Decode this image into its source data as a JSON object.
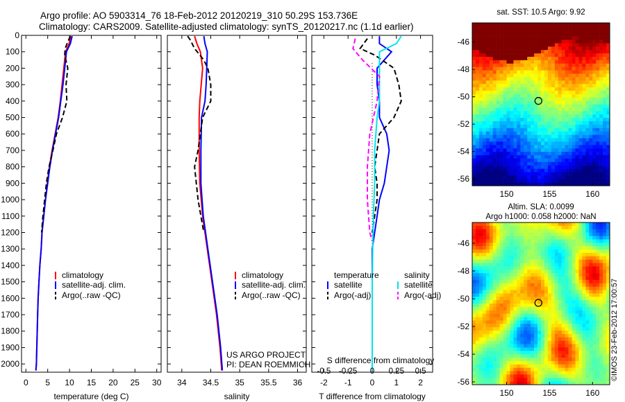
{
  "header": {
    "line1": "Argo profile: AO 5903314_76 18-Feb-2012 20120219_310 50.29S 153.736E",
    "line2": "Climatology: CARS2009. Satellite-adjusted climatology: synTS_20120217.nc (1.1d earlier)"
  },
  "colors": {
    "climatology": "#ff0000",
    "satellite": "#0000ff",
    "argo": "#000000",
    "s_satellite": "#00e5ee",
    "s_argo": "#ff00ff"
  },
  "chart_data": [
    {
      "type": "line",
      "id": "temperature",
      "xlabel": "temperature (deg C)",
      "ylabel": "",
      "xlim": [
        -1,
        31
      ],
      "ylim": [
        2050,
        0
      ],
      "xticks": [
        0,
        5,
        10,
        15,
        20,
        25,
        30
      ],
      "yticks": [
        0,
        100,
        200,
        300,
        400,
        500,
        600,
        700,
        800,
        900,
        1000,
        1100,
        1200,
        1300,
        1400,
        1500,
        1600,
        1700,
        1800,
        1900,
        2000
      ],
      "legend": [
        "climatology",
        "satellite-adj. clim.",
        "Argo(..raw -QC)"
      ],
      "series": [
        {
          "name": "climatology",
          "points": [
            [
              10.3,
              5
            ],
            [
              9.9,
              50
            ],
            [
              9.1,
              100
            ],
            [
              8.7,
              200
            ],
            [
              8.3,
              300
            ],
            [
              7.9,
              400
            ],
            [
              7.4,
              500
            ],
            [
              6.7,
              600
            ],
            [
              6.0,
              700
            ],
            [
              5.4,
              800
            ],
            [
              4.9,
              900
            ],
            [
              4.5,
              1000
            ],
            [
              4.1,
              1100
            ],
            [
              3.7,
              1200
            ],
            [
              3.5,
              1300
            ],
            [
              3.2,
              1400
            ],
            [
              3.0,
              1500
            ],
            [
              2.8,
              1600
            ],
            [
              2.7,
              1700
            ],
            [
              2.6,
              1800
            ],
            [
              2.5,
              1900
            ],
            [
              2.4,
              2000
            ],
            [
              2.3,
              2040
            ]
          ]
        },
        {
          "name": "satellite-adj. clim.",
          "points": [
            [
              10.6,
              5
            ],
            [
              10.2,
              50
            ],
            [
              9.3,
              100
            ],
            [
              8.9,
              200
            ],
            [
              8.5,
              300
            ],
            [
              8.0,
              400
            ],
            [
              7.5,
              500
            ],
            [
              6.8,
              600
            ],
            [
              6.1,
              700
            ],
            [
              5.5,
              800
            ],
            [
              5.0,
              900
            ],
            [
              4.5,
              1000
            ],
            [
              4.1,
              1100
            ],
            [
              3.7,
              1200
            ],
            [
              3.5,
              1300
            ],
            [
              3.2,
              1400
            ],
            [
              3.0,
              1500
            ],
            [
              2.8,
              1600
            ],
            [
              2.7,
              1700
            ],
            [
              2.6,
              1800
            ],
            [
              2.5,
              1900
            ],
            [
              2.4,
              2000
            ],
            [
              2.3,
              2040
            ]
          ]
        },
        {
          "name": "Argo(..raw -QC)",
          "points": [
            [
              10.2,
              5
            ],
            [
              9.6,
              40
            ],
            [
              9.0,
              80
            ],
            [
              8.9,
              120
            ],
            [
              9.6,
              200
            ],
            [
              9.2,
              300
            ],
            [
              9.4,
              400
            ],
            [
              8.4,
              500
            ],
            [
              7.0,
              600
            ],
            [
              6.2,
              700
            ],
            [
              5.3,
              800
            ],
            [
              4.7,
              900
            ],
            [
              4.3,
              1000
            ],
            [
              3.9,
              1100
            ],
            [
              3.6,
              1200
            ]
          ]
        }
      ]
    },
    {
      "type": "line",
      "id": "salinity",
      "xlabel": "salinity",
      "xlim": [
        33.75,
        36.15
      ],
      "ylim": [
        2050,
        0
      ],
      "xticks": [
        34,
        34.5,
        35,
        35.5,
        36
      ],
      "legend": [
        "climatology",
        "satellite-adj. clim.",
        "Argo(..raw -QC)"
      ],
      "series": [
        {
          "name": "climatology",
          "points": [
            [
              34.22,
              5
            ],
            [
              34.26,
              50
            ],
            [
              34.32,
              100
            ],
            [
              34.36,
              200
            ],
            [
              34.31,
              400
            ],
            [
              34.3,
              500
            ],
            [
              34.3,
              700
            ],
            [
              34.31,
              900
            ],
            [
              34.36,
              1100
            ],
            [
              34.44,
              1300
            ],
            [
              34.52,
              1500
            ],
            [
              34.6,
              1700
            ],
            [
              34.66,
              1900
            ],
            [
              34.69,
              2040
            ]
          ]
        },
        {
          "name": "satellite-adj. clim.",
          "points": [
            [
              34.38,
              5
            ],
            [
              34.4,
              50
            ],
            [
              34.44,
              100
            ],
            [
              34.43,
              200
            ],
            [
              34.42,
              300
            ],
            [
              34.4,
              400
            ],
            [
              34.34,
              500
            ],
            [
              34.33,
              700
            ],
            [
              34.33,
              900
            ],
            [
              34.37,
              1100
            ],
            [
              34.45,
              1300
            ],
            [
              34.53,
              1500
            ],
            [
              34.61,
              1700
            ],
            [
              34.67,
              1900
            ],
            [
              34.7,
              2040
            ]
          ]
        },
        {
          "name": "Argo(..raw -QC)",
          "points": [
            [
              34.1,
              5
            ],
            [
              34.15,
              30
            ],
            [
              34.22,
              80
            ],
            [
              34.38,
              150
            ],
            [
              34.45,
              200
            ],
            [
              34.5,
              300
            ],
            [
              34.5,
              400
            ],
            [
              34.36,
              500
            ],
            [
              34.28,
              700
            ],
            [
              34.22,
              800
            ],
            [
              34.25,
              900
            ],
            [
              34.28,
              1000
            ],
            [
              34.33,
              1100
            ],
            [
              34.38,
              1200
            ]
          ]
        }
      ]
    },
    {
      "type": "line",
      "id": "difference",
      "xlabel": "T difference from climatology",
      "xlabel_top": "S difference from climatology",
      "xlim": [
        -2.5,
        2.5
      ],
      "ylim": [
        2050,
        0
      ],
      "xticks": [
        -2,
        -1,
        0,
        1,
        2
      ],
      "xticks_top_labels": [
        "-0.5",
        "-0.25",
        "0",
        "0.25",
        "0.5"
      ],
      "legend_left_title": "temperature",
      "legend_right_title": "salinity",
      "legend": [
        "satellite",
        "Argo(-adj)",
        "satellite",
        "Argo(-adj)"
      ],
      "annotation": [
        "US ARGO PROJECT",
        "PI: DEAN ROEMMICH"
      ],
      "series": [
        {
          "name": "satellite",
          "group": "temperature",
          "points": [
            [
              0.3,
              5
            ],
            [
              0.3,
              50
            ],
            [
              0.8,
              100
            ],
            [
              0.2,
              200
            ],
            [
              0.2,
              300
            ],
            [
              0.3,
              400
            ],
            [
              0.3,
              500
            ],
            [
              0.6,
              600
            ],
            [
              0.7,
              700
            ],
            [
              0.6,
              800
            ],
            [
              0.5,
              900
            ],
            [
              0.3,
              1000
            ],
            [
              0.2,
              1100
            ],
            [
              0.1,
              1200
            ],
            [
              0,
              1300
            ],
            [
              0,
              1400
            ],
            [
              0,
              1600
            ],
            [
              0,
              1800
            ],
            [
              0,
              2040
            ]
          ]
        },
        {
          "name": "Argo(-adj)",
          "group": "temperature",
          "points": [
            [
              -0.2,
              20
            ],
            [
              -0.5,
              80
            ],
            [
              0.1,
              120
            ],
            [
              0.9,
              200
            ],
            [
              1.1,
              300
            ],
            [
              1.2,
              400
            ],
            [
              0.9,
              500
            ],
            [
              0.3,
              600
            ],
            [
              0.2,
              700
            ],
            [
              0.1,
              800
            ],
            [
              0.2,
              900
            ],
            [
              0.2,
              1000
            ],
            [
              0.1,
              1100
            ],
            [
              0,
              1200
            ]
          ]
        },
        {
          "name": "satellite",
          "group": "salinity",
          "points": [
            [
              1.2,
              5
            ],
            [
              1.0,
              50
            ],
            [
              0.3,
              100
            ],
            [
              0.3,
              200
            ],
            [
              0.3,
              400
            ],
            [
              0.2,
              500
            ],
            [
              0.1,
              700
            ],
            [
              0.1,
              900
            ],
            [
              0.05,
              1100
            ],
            [
              0.02,
              1300
            ],
            [
              0,
              1500
            ],
            [
              0,
              1800
            ],
            [
              0,
              2040
            ]
          ]
        },
        {
          "name": "Argo(-adj)",
          "group": "salinity",
          "points": [
            [
              -0.7,
              20
            ],
            [
              -0.8,
              80
            ],
            [
              -0.4,
              150
            ],
            [
              0.3,
              250
            ],
            [
              0.2,
              400
            ],
            [
              -0.1,
              600
            ],
            [
              -0.2,
              800
            ],
            [
              -0.2,
              1000
            ],
            [
              -0.1,
              1200
            ],
            [
              0,
              1250
            ]
          ]
        }
      ]
    }
  ],
  "maps": [
    {
      "title_lines": [
        "sat. SST: 10.5 Argo: 9.92"
      ],
      "xlim": [
        146,
        162
      ],
      "ylim": [
        -56.5,
        -44.6
      ],
      "xticks": [
        150,
        155,
        160
      ],
      "yticks": [
        -46,
        -48,
        -50,
        -52,
        -54,
        -56
      ],
      "argo_marker": [
        153.7,
        -50.3
      ]
    },
    {
      "title_lines": [
        "Altim. SLA: 0.0099",
        "Argo h1000: 0.058 h2000: NaN"
      ],
      "xlim": [
        146,
        162
      ],
      "ylim": [
        -56.2,
        -44.5
      ],
      "xticks": [
        150,
        155,
        160
      ],
      "yticks": [
        -46,
        -48,
        -50,
        -52,
        -54,
        -56
      ],
      "argo_marker": [
        153.7,
        -50.3
      ]
    }
  ],
  "credit": "©IMOS 23-Feb-2012 17:00:57"
}
